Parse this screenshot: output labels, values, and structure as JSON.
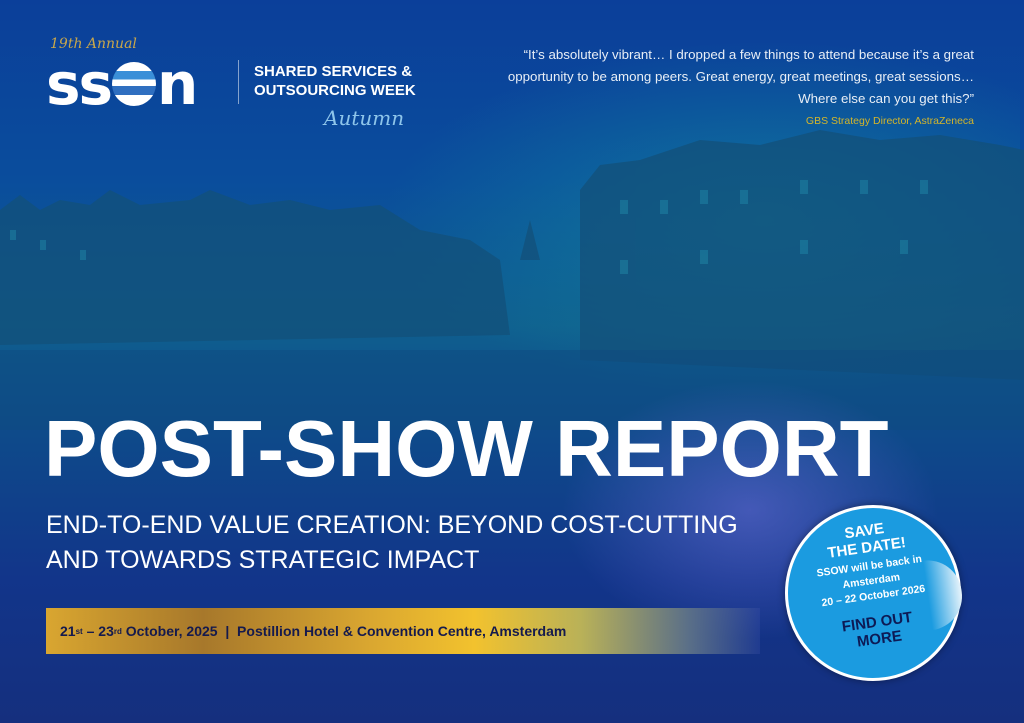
{
  "logo": {
    "annual": "19th Annual",
    "brand": "SSON",
    "event_line1": "SHARED SERVICES &",
    "event_line2": "OUTSOURCING WEEK",
    "season": "Autumn"
  },
  "quote": {
    "text": "“It’s absolutely vibrant… I dropped a few things to attend because it’s a great opportunity to be among peers. Great energy, great meetings, great sessions… Where else can you get this?”",
    "attribution": "GBS Strategy Director, AstraZeneca"
  },
  "title": "POST-SHOW REPORT",
  "subtitle": "END-TO-END VALUE CREATION: BEYOND COST-CUTTING AND TOWARDS STRATEGIC IMPACT",
  "event_band": {
    "start_day": "21",
    "start_suffix": "st",
    "dash": " – ",
    "end_day": "23",
    "end_suffix": "rd",
    "rest": " October, 2025  |  Postillion Hotel & Convention Centre, Amsterdam"
  },
  "sticker": {
    "heading_line1": "SAVE",
    "heading_line2": "THE DATE!",
    "line1": "SSOW will be back in",
    "line2": "Amsterdam",
    "line3": "20 – 22 October 2026",
    "cta_line1": "FIND OUT",
    "cta_line2": "MORE"
  },
  "colors": {
    "background": "#0b3f9a",
    "gold": "#d4b52a",
    "sticker": "#1b9be0",
    "band_text": "#151a4d"
  }
}
